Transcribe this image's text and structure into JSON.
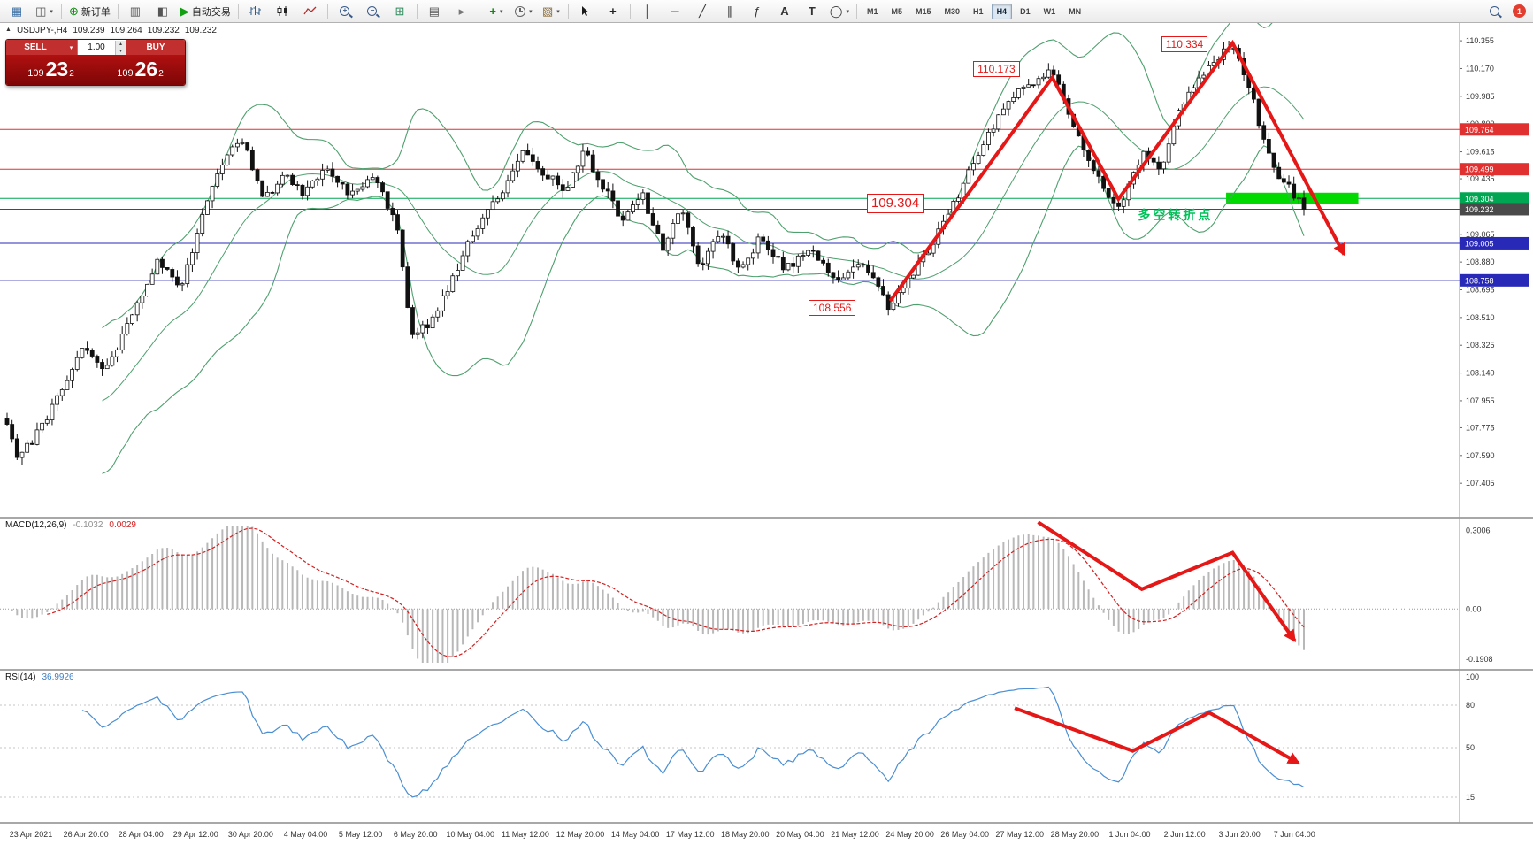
{
  "toolbar": {
    "groups": [
      {
        "items": [
          {
            "icon": "new-chart"
          },
          {
            "icon": "chart-profiles",
            "dropdown": true
          }
        ]
      },
      {
        "items": [
          {
            "icon": "new-order",
            "label": "新订单"
          }
        ]
      },
      {
        "items": [
          {
            "icon": "market-watch"
          },
          {
            "icon": "navigator"
          },
          {
            "icon": "autotrade",
            "label": "自动交易"
          }
        ]
      },
      {
        "items": [
          {
            "icon": "bar-chart"
          },
          {
            "icon": "candlestick-chart"
          },
          {
            "icon": "line-chart"
          }
        ]
      },
      {
        "items": [
          {
            "icon": "zoom-in"
          },
          {
            "icon": "zoom-out"
          },
          {
            "icon": "tile-windows"
          }
        ]
      },
      {
        "items": [
          {
            "icon": "data-window"
          },
          {
            "icon": "chart-shift"
          }
        ]
      },
      {
        "items": [
          {
            "icon": "indicators-add",
            "dropdown": true
          },
          {
            "icon": "periods",
            "dropdown": true
          },
          {
            "icon": "templates",
            "dropdown": true
          }
        ]
      },
      {
        "items": [
          {
            "icon": "cursor"
          },
          {
            "icon": "crosshair"
          }
        ]
      },
      {
        "items": [
          {
            "icon": "vertical-line"
          },
          {
            "icon": "horizontal-line"
          },
          {
            "icon": "trendline"
          },
          {
            "icon": "equidistant-channel"
          },
          {
            "icon": "fibonacci"
          },
          {
            "icon": "text"
          },
          {
            "icon": "text-label"
          },
          {
            "icon": "shapes",
            "dropdown": true
          }
        ]
      }
    ],
    "timeframes": [
      "M1",
      "M5",
      "M15",
      "M30",
      "H1",
      "H4",
      "D1",
      "W1",
      "MN"
    ],
    "active_timeframe": "H4",
    "notification_badge": "1"
  },
  "chart_header": {
    "expand_icon": "▲",
    "symbol_period": "USDJPY-,H4",
    "open": "109.239",
    "high": "109.264",
    "low": "109.232",
    "close": "109.232"
  },
  "trade_panel": {
    "sell_label": "SELL",
    "buy_label": "BUY",
    "lot_value": "1.00",
    "dropdown_icon": "▾",
    "stepper_up": "▴",
    "stepper_down": "▾",
    "sell_price_prefix": "109",
    "sell_price_main": "23",
    "sell_price_sup": "2",
    "buy_price_prefix": "109",
    "buy_price_main": "26",
    "buy_price_sup": "2"
  },
  "main_chart": {
    "axis_ticks": [
      "110.355",
      "110.170",
      "109.985",
      "109.800",
      "109.615",
      "109.435",
      "109.065",
      "108.880",
      "108.695",
      "108.510",
      "108.325",
      "108.140",
      "107.955",
      "107.775",
      "107.590",
      "107.405"
    ],
    "lines": [
      {
        "price": 109.764,
        "label": "109.764",
        "color": "#e03030"
      },
      {
        "price": 109.499,
        "label": "109.499",
        "color": "#e03030"
      },
      {
        "price": 109.304,
        "label": "109.304",
        "color": "#00a651"
      },
      {
        "price": 109.232,
        "label": "109.232",
        "color": "#4a4a4a",
        "current": true
      },
      {
        "price": 109.005,
        "label": "109.005",
        "color": "#2929b8"
      },
      {
        "price": 108.758,
        "label": "108.758",
        "color": "#2929b8"
      }
    ]
  },
  "macd_panel": {
    "label": "MACD(12,26,9)",
    "main_value": "-0.1032",
    "signal_value": "0.0029",
    "axis_labels": [
      "0.3006",
      "0.00",
      "-0.1908"
    ],
    "histogram_color": "#b8b8b8",
    "signal_color": "#d42020"
  },
  "rsi_panel": {
    "label": "RSI(14)",
    "value": "36.9926",
    "axis_labels": [
      "100",
      "80",
      "50",
      "15"
    ],
    "levels": [
      80,
      50,
      15
    ],
    "line_color": "#4a8fd4"
  },
  "time_axis": {
    "labels": [
      "23 Apr 2021",
      "26 Apr 20:00",
      "28 Apr 04:00",
      "29 Apr 12:00",
      "30 Apr 20:00",
      "4 May 04:00",
      "5 May 12:00",
      "6 May 20:00",
      "10 May 04:00",
      "11 May 12:00",
      "12 May 20:00",
      "14 May 04:00",
      "17 May 12:00",
      "18 May 20:00",
      "20 May 04:00",
      "21 May 12:00",
      "24 May 20:00",
      "26 May 04:00",
      "27 May 12:00",
      "28 May 20:00",
      "1 Jun 04:00",
      "2 Jun 12:00",
      "3 Jun 20:00",
      "7 Jun 04:00"
    ]
  },
  "overlays": {
    "arrow_color": "#e51717",
    "price_labels": [
      {
        "text": "110.173",
        "t": 0.745,
        "price": 110.165
      },
      {
        "text": "110.334",
        "t": 0.89,
        "price": 110.33
      },
      {
        "text": "109.304",
        "t": 0.663,
        "price": 109.268,
        "big": true
      },
      {
        "text": "108.556",
        "t": 0.618,
        "price": 108.575
      }
    ],
    "note": {
      "text": "多空转折点",
      "t": 0.872,
      "price": 109.205,
      "color": "#00c25a"
    },
    "highlight_rect": {
      "t0": 0.94,
      "t1": 1.042,
      "price": 109.304,
      "color": "#00da00"
    },
    "main_trend_arrow": [
      [
        0.681,
        108.62
      ],
      [
        0.806,
        110.11
      ],
      [
        0.857,
        109.3
      ],
      [
        0.945,
        110.34
      ],
      [
        1.031,
        108.93
      ]
    ],
    "macd_trend_arrow": [
      [
        0.795,
        0.03
      ],
      [
        0.875,
        0.47
      ],
      [
        0.945,
        0.23
      ],
      [
        0.993,
        0.81
      ]
    ],
    "rsi_trend_arrow": [
      [
        0.777,
        0.25
      ],
      [
        0.868,
        0.53
      ],
      [
        0.927,
        0.28
      ],
      [
        0.996,
        0.61
      ]
    ]
  },
  "chart_data": {
    "type": "candlestick",
    "symbol": "USDJPY",
    "period": "H4",
    "num_candles": 260,
    "price_range": [
      107.35,
      110.45
    ],
    "bollinger": {
      "period": 20,
      "deviation": 2,
      "color": "#4ea06e"
    },
    "macd": {
      "fast": 12,
      "slow": 26,
      "signal": 9
    },
    "rsi": {
      "period": 14
    },
    "candle_up_color": "#ffffff",
    "candle_down_color": "#111111",
    "price_path": [
      [
        0.0,
        107.82
      ],
      [
        0.008,
        107.58
      ],
      [
        0.02,
        107.7
      ],
      [
        0.04,
        107.98
      ],
      [
        0.058,
        108.33
      ],
      [
        0.075,
        108.12
      ],
      [
        0.095,
        108.5
      ],
      [
        0.115,
        108.88
      ],
      [
        0.135,
        108.72
      ],
      [
        0.155,
        109.33
      ],
      [
        0.17,
        109.6
      ],
      [
        0.183,
        109.68
      ],
      [
        0.198,
        109.28
      ],
      [
        0.213,
        109.47
      ],
      [
        0.228,
        109.34
      ],
      [
        0.248,
        109.5
      ],
      [
        0.266,
        109.32
      ],
      [
        0.283,
        109.45
      ],
      [
        0.3,
        109.15
      ],
      [
        0.312,
        108.4
      ],
      [
        0.326,
        108.48
      ],
      [
        0.342,
        108.75
      ],
      [
        0.36,
        109.08
      ],
      [
        0.38,
        109.33
      ],
      [
        0.398,
        109.6
      ],
      [
        0.413,
        109.48
      ],
      [
        0.43,
        109.36
      ],
      [
        0.445,
        109.62
      ],
      [
        0.46,
        109.38
      ],
      [
        0.475,
        109.15
      ],
      [
        0.49,
        109.33
      ],
      [
        0.505,
        108.97
      ],
      [
        0.52,
        109.22
      ],
      [
        0.535,
        108.84
      ],
      [
        0.55,
        109.1
      ],
      [
        0.565,
        108.8
      ],
      [
        0.58,
        109.03
      ],
      [
        0.6,
        108.84
      ],
      [
        0.62,
        108.95
      ],
      [
        0.64,
        108.76
      ],
      [
        0.66,
        108.88
      ],
      [
        0.681,
        108.57
      ],
      [
        0.695,
        108.76
      ],
      [
        0.712,
        108.98
      ],
      [
        0.733,
        109.32
      ],
      [
        0.755,
        109.72
      ],
      [
        0.778,
        110.0
      ],
      [
        0.806,
        110.16
      ],
      [
        0.82,
        109.82
      ],
      [
        0.838,
        109.48
      ],
      [
        0.857,
        109.24
      ],
      [
        0.875,
        109.6
      ],
      [
        0.89,
        109.48
      ],
      [
        0.905,
        109.92
      ],
      [
        0.925,
        110.18
      ],
      [
        0.945,
        110.32
      ],
      [
        0.96,
        109.98
      ],
      [
        0.975,
        109.52
      ],
      [
        0.99,
        109.36
      ],
      [
        1.0,
        109.24
      ]
    ]
  }
}
